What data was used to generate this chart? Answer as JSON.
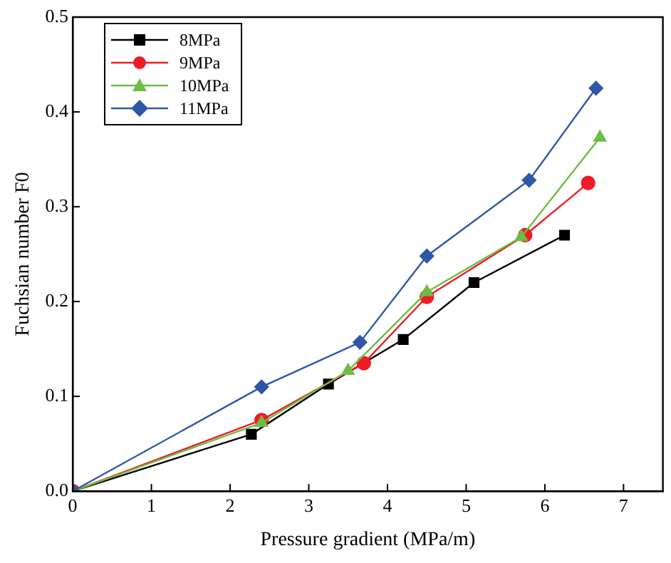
{
  "chart_data": {
    "type": "line",
    "xlabel": "Pressure gradient (MPa/m)",
    "ylabel": "Fuchsian number F0",
    "xlim": [
      0,
      7.5
    ],
    "xticks": [
      0,
      1,
      2,
      3,
      4,
      5,
      6,
      7
    ],
    "ylim": [
      0,
      0.5
    ],
    "yticks": [
      {
        "value": 0,
        "label": "0.0"
      },
      {
        "value": 0.1,
        "label": "0.1"
      },
      {
        "value": 0.2,
        "label": "0.2"
      },
      {
        "value": 0.3,
        "label": "0.3"
      },
      {
        "value": 0.4,
        "label": "0.4"
      },
      {
        "value": 0.5,
        "label": "0.5"
      }
    ],
    "grid": false,
    "legend": "top left",
    "line_style": "solid",
    "series": [
      {
        "name": "8MPa",
        "color": "#000000",
        "marker": "square",
        "x": [
          0,
          2.27,
          3.25,
          4.2,
          5.1,
          6.25
        ],
        "values": [
          0,
          0.06,
          0.113,
          0.16,
          0.22,
          0.27
        ]
      },
      {
        "name": "9MPa",
        "color": "#ee1c25",
        "marker": "circle",
        "x": [
          0,
          2.4,
          3.7,
          4.5,
          5.75,
          6.55
        ],
        "values": [
          0,
          0.075,
          0.135,
          0.205,
          0.27,
          0.325
        ]
      },
      {
        "name": "10MPa",
        "color": "#6cbd45",
        "marker": "triangle",
        "x": [
          0,
          2.4,
          3.5,
          4.5,
          5.7,
          6.7
        ],
        "values": [
          0,
          0.072,
          0.127,
          0.21,
          0.268,
          0.373
        ]
      },
      {
        "name": "11MPa",
        "color": "#2e57a8",
        "marker": "diamond",
        "x": [
          0,
          2.4,
          3.65,
          4.5,
          5.8,
          6.65
        ],
        "values": [
          0,
          0.11,
          0.157,
          0.248,
          0.328,
          0.425
        ]
      }
    ]
  }
}
